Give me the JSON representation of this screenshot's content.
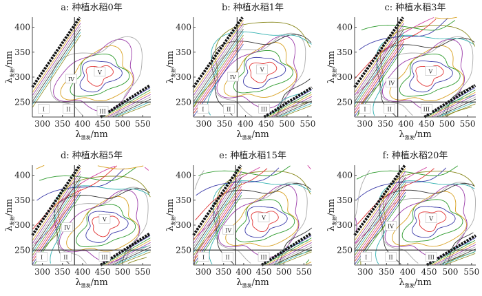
{
  "chart_data": [
    {
      "type": "contour",
      "title": "a: 种植水稻0年",
      "xlim": [
        275,
        570
      ],
      "ylim": [
        220,
        420
      ],
      "xticks": [
        300,
        350,
        400,
        450,
        500,
        550
      ],
      "yticks": [
        250,
        300,
        350,
        400
      ],
      "xlabel": {
        "symbol": "λ",
        "sub": "激发",
        "unit": "/nm"
      },
      "ylabel": {
        "symbol": "λ",
        "sub": "发射",
        "unit": "/nm"
      },
      "boundaries": {
        "horizontal": 250,
        "vertical": 380
      },
      "regions": [
        {
          "label": "I",
          "x": 303,
          "y": 236
        },
        {
          "label": "II",
          "x": 365,
          "y": 236
        },
        {
          "label": "III",
          "x": 450,
          "y": 232
        },
        {
          "label": "IV",
          "x": 372,
          "y": 296
        },
        {
          "label": "V",
          "x": 443,
          "y": 310
        }
      ],
      "peak": {
        "x": 440,
        "y": 305
      },
      "levels": 6
    },
    {
      "type": "contour",
      "title": "b: 种植水稻1年",
      "xlim": [
        275,
        560
      ],
      "ylim": [
        220,
        420
      ],
      "xticks": [
        300,
        350,
        400,
        450,
        500,
        550
      ],
      "yticks": [
        250,
        300,
        350,
        400
      ],
      "xlabel": {
        "symbol": "λ",
        "sub": "激发",
        "unit": "/nm"
      },
      "ylabel": {
        "symbol": "λ",
        "sub": "发射",
        "unit": "/nm"
      },
      "boundaries": {
        "horizontal": 250,
        "vertical": 380
      },
      "regions": [
        {
          "label": "I",
          "x": 298,
          "y": 236
        },
        {
          "label": "II",
          "x": 360,
          "y": 236
        },
        {
          "label": "III",
          "x": 445,
          "y": 236
        },
        {
          "label": "IV",
          "x": 370,
          "y": 300
        },
        {
          "label": "V",
          "x": 440,
          "y": 315
        }
      ],
      "peak": {
        "x": 440,
        "y": 312
      },
      "levels": 9
    },
    {
      "type": "contour",
      "title": "c: 种植水稻3年",
      "xlim": [
        275,
        570
      ],
      "ylim": [
        220,
        420
      ],
      "xticks": [
        300,
        350,
        400,
        450,
        500,
        550
      ],
      "yticks": [
        250,
        300,
        350,
        400
      ],
      "xlabel": {
        "symbol": "λ",
        "sub": "激发",
        "unit": "/nm"
      },
      "ylabel": {
        "symbol": "λ",
        "sub": "发射",
        "unit": "/nm"
      },
      "boundaries": {
        "horizontal": 250,
        "vertical": 380
      },
      "regions": [
        {
          "label": "I",
          "x": 300,
          "y": 236
        },
        {
          "label": "II",
          "x": 360,
          "y": 236
        },
        {
          "label": "III",
          "x": 450,
          "y": 236
        },
        {
          "label": "IV",
          "x": 365,
          "y": 288
        },
        {
          "label": "V",
          "x": 460,
          "y": 312
        }
      ],
      "peak": {
        "x": 455,
        "y": 305
      },
      "levels": 14
    },
    {
      "type": "contour",
      "title": "d: 种植水稻5年",
      "xlim": [
        275,
        570
      ],
      "ylim": [
        220,
        420
      ],
      "xticks": [
        300,
        350,
        400,
        450,
        500,
        550
      ],
      "yticks": [
        250,
        300,
        350,
        400
      ],
      "xlabel": {
        "symbol": "λ",
        "sub": "激发",
        "unit": "/nm"
      },
      "ylabel": {
        "symbol": "λ",
        "sub": "发射",
        "unit": "/nm"
      },
      "boundaries": {
        "horizontal": 250,
        "vertical": 380
      },
      "regions": [
        {
          "label": "I",
          "x": 298,
          "y": 236
        },
        {
          "label": "II",
          "x": 358,
          "y": 236
        },
        {
          "label": "III",
          "x": 455,
          "y": 236
        },
        {
          "label": "IV",
          "x": 362,
          "y": 295
        },
        {
          "label": "V",
          "x": 455,
          "y": 312
        }
      ],
      "peak": {
        "x": 455,
        "y": 300
      },
      "levels": 14
    },
    {
      "type": "contour",
      "title": "e: 种植水稻15年",
      "xlim": [
        275,
        570
      ],
      "ylim": [
        220,
        420
      ],
      "xticks": [
        300,
        350,
        400,
        450,
        500,
        550
      ],
      "yticks": [
        250,
        300,
        350,
        400
      ],
      "xlabel": {
        "symbol": "λ",
        "sub": "激发",
        "unit": "/nm"
      },
      "ylabel": {
        "symbol": "λ",
        "sub": "发射",
        "unit": "/nm"
      },
      "boundaries": {
        "horizontal": 250,
        "vertical": 380
      },
      "regions": [
        {
          "label": "I",
          "x": 300,
          "y": 236
        },
        {
          "label": "II",
          "x": 360,
          "y": 236
        },
        {
          "label": "III",
          "x": 450,
          "y": 236
        },
        {
          "label": "IV",
          "x": 362,
          "y": 290
        },
        {
          "label": "V",
          "x": 450,
          "y": 315
        }
      ],
      "peak": {
        "x": 450,
        "y": 310
      },
      "levels": 16
    },
    {
      "type": "contour",
      "title": "f: 种植水稻20年",
      "xlim": [
        275,
        560
      ],
      "ylim": [
        220,
        420
      ],
      "xticks": [
        300,
        350,
        400,
        450,
        500,
        550
      ],
      "yticks": [
        250,
        300,
        350,
        400
      ],
      "xlabel": {
        "symbol": "λ",
        "sub": "激发",
        "unit": "/nm"
      },
      "ylabel": {
        "symbol": "λ",
        "sub": "发射",
        "unit": "/nm"
      },
      "boundaries": {
        "horizontal": 250,
        "vertical": 380
      },
      "regions": [
        {
          "label": "I",
          "x": 302,
          "y": 236
        },
        {
          "label": "II",
          "x": 360,
          "y": 236
        },
        {
          "label": "III",
          "x": 455,
          "y": 236
        },
        {
          "label": "IV",
          "x": 360,
          "y": 298
        },
        {
          "label": "V",
          "x": 455,
          "y": 313
        }
      ],
      "peak": {
        "x": 455,
        "y": 310
      },
      "levels": 16
    }
  ],
  "colors": {
    "contours": [
      "#e03030",
      "#3a3aa8",
      "#2c9a2c",
      "#d8a020",
      "#9a3aa8",
      "#aaaaaa",
      "#333333",
      "#30b0b0",
      "#8a8a20",
      "#d040a0"
    ],
    "scatter_band": "#111111",
    "boundary": "#333333"
  }
}
